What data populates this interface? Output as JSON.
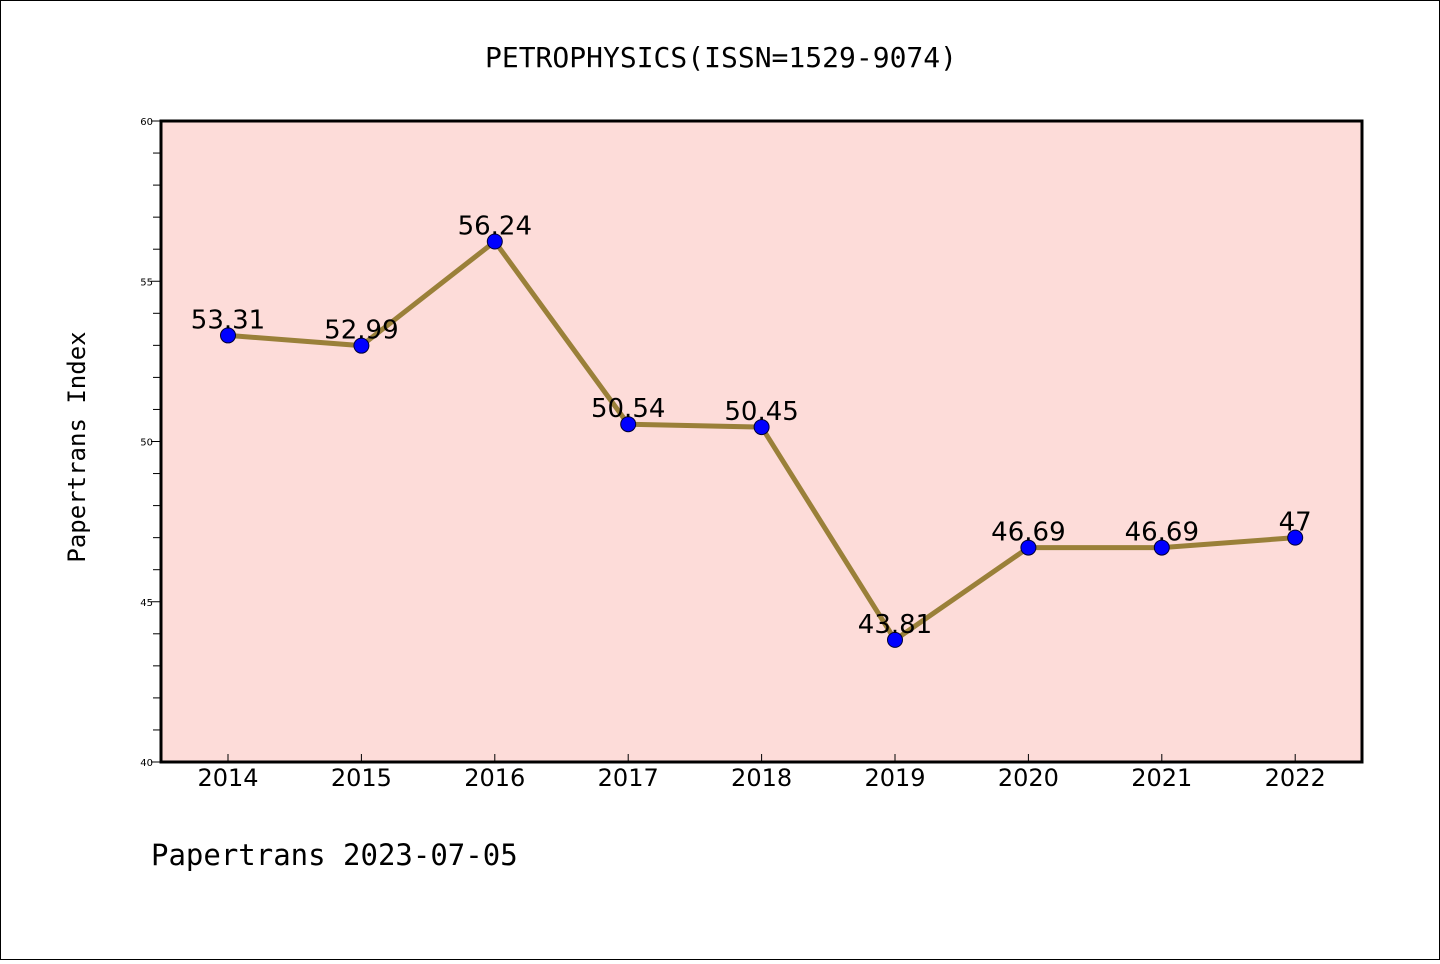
{
  "chart_data": {
    "type": "line",
    "title": "PETROPHYSICS(ISSN=1529-9074)",
    "ylabel": "Papertrans Index",
    "xlabel": "",
    "categories": [
      "2014",
      "2015",
      "2016",
      "2017",
      "2018",
      "2019",
      "2020",
      "2021",
      "2022"
    ],
    "series": [
      {
        "values": [
          53.31,
          52.99,
          56.24,
          50.54,
          50.45,
          43.81,
          46.69,
          46.69,
          47
        ],
        "labels": [
          "53.31",
          "52.99",
          "56.24",
          "50.54",
          "50.45",
          "43.81",
          "46.69",
          "46.69",
          "47"
        ]
      }
    ],
    "ylim": [
      40,
      60
    ],
    "yticks": [
      "40",
      "45",
      "50",
      "55",
      "60"
    ],
    "grid": false,
    "colors": {
      "plot_background": "#fddcd9",
      "line": "#9a8039",
      "marker": "#0000ff"
    }
  },
  "footer": "Papertrans 2023-07-05"
}
